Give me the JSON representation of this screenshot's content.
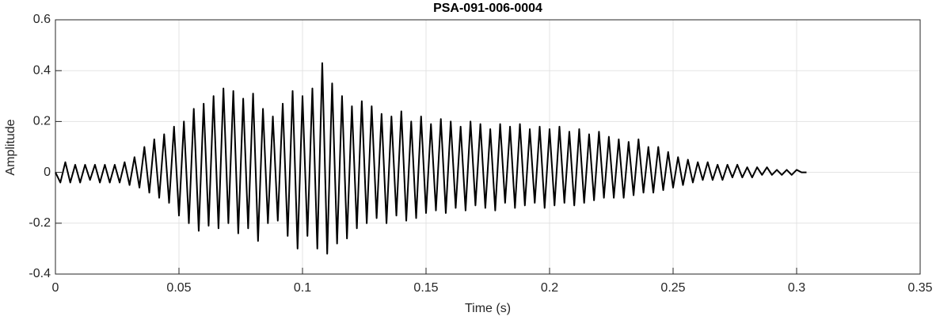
{
  "chart_data": {
    "type": "line",
    "title": "PSA-091-006-0004",
    "xlabel": "Time (s)",
    "ylabel": "Amplitude",
    "x": [
      0,
      0.002,
      0.004,
      0.006,
      0.008,
      0.01,
      0.012,
      0.014,
      0.016,
      0.018,
      0.02,
      0.022,
      0.024,
      0.026,
      0.028,
      0.03,
      0.032,
      0.034,
      0.036,
      0.038,
      0.04,
      0.042,
      0.044,
      0.046,
      0.048,
      0.05,
      0.052,
      0.054,
      0.056,
      0.058,
      0.06,
      0.062,
      0.064,
      0.066,
      0.068,
      0.07,
      0.072,
      0.074,
      0.076,
      0.078,
      0.08,
      0.082,
      0.084,
      0.086,
      0.088,
      0.09,
      0.092,
      0.094,
      0.096,
      0.098,
      0.1,
      0.102,
      0.104,
      0.106,
      0.108,
      0.11,
      0.112,
      0.114,
      0.116,
      0.118,
      0.12,
      0.122,
      0.124,
      0.126,
      0.128,
      0.13,
      0.132,
      0.134,
      0.136,
      0.138,
      0.14,
      0.142,
      0.144,
      0.146,
      0.148,
      0.15,
      0.152,
      0.154,
      0.156,
      0.158,
      0.16,
      0.162,
      0.164,
      0.166,
      0.168,
      0.17,
      0.172,
      0.174,
      0.176,
      0.178,
      0.18,
      0.182,
      0.184,
      0.186,
      0.188,
      0.19,
      0.192,
      0.194,
      0.196,
      0.198,
      0.2,
      0.202,
      0.204,
      0.206,
      0.208,
      0.21,
      0.212,
      0.214,
      0.216,
      0.218,
      0.22,
      0.222,
      0.224,
      0.226,
      0.228,
      0.23,
      0.232,
      0.234,
      0.236,
      0.238,
      0.24,
      0.242,
      0.244,
      0.246,
      0.248,
      0.25,
      0.252,
      0.254,
      0.256,
      0.258,
      0.26,
      0.262,
      0.264,
      0.266,
      0.268,
      0.27,
      0.272,
      0.274,
      0.276,
      0.278,
      0.28,
      0.282,
      0.284,
      0.286,
      0.288,
      0.29,
      0.292,
      0.294,
      0.296,
      0.298,
      0.3,
      0.302,
      0.304
    ],
    "values": [
      0,
      -0.04,
      0.04,
      -0.04,
      0.03,
      -0.04,
      0.03,
      -0.03,
      0.03,
      -0.04,
      0.03,
      -0.04,
      0.03,
      -0.04,
      0.04,
      -0.05,
      0.06,
      -0.06,
      0.1,
      -0.08,
      0.13,
      -0.1,
      0.15,
      -0.12,
      0.18,
      -0.17,
      0.2,
      -0.2,
      0.25,
      -0.23,
      0.27,
      -0.21,
      0.3,
      -0.22,
      0.33,
      -0.2,
      0.32,
      -0.24,
      0.29,
      -0.22,
      0.31,
      -0.27,
      0.25,
      -0.2,
      0.22,
      -0.19,
      0.27,
      -0.25,
      0.32,
      -0.3,
      0.3,
      -0.25,
      0.33,
      -0.3,
      0.43,
      -0.32,
      0.35,
      -0.28,
      0.3,
      -0.26,
      0.26,
      -0.22,
      0.28,
      -0.2,
      0.26,
      -0.18,
      0.23,
      -0.2,
      0.22,
      -0.17,
      0.24,
      -0.19,
      0.2,
      -0.18,
      0.22,
      -0.16,
      0.19,
      -0.15,
      0.21,
      -0.16,
      0.2,
      -0.14,
      0.18,
      -0.15,
      0.2,
      -0.13,
      0.19,
      -0.14,
      0.17,
      -0.15,
      0.19,
      -0.12,
      0.18,
      -0.14,
      0.19,
      -0.13,
      0.17,
      -0.12,
      0.18,
      -0.14,
      0.17,
      -0.13,
      0.18,
      -0.12,
      0.16,
      -0.13,
      0.17,
      -0.12,
      0.15,
      -0.11,
      0.16,
      -0.1,
      0.14,
      -0.1,
      0.13,
      -0.1,
      0.12,
      -0.09,
      0.13,
      -0.08,
      0.1,
      -0.08,
      0.1,
      -0.07,
      0.08,
      -0.06,
      0.06,
      -0.05,
      0.05,
      -0.04,
      0.04,
      -0.03,
      0.04,
      -0.03,
      0.03,
      -0.03,
      0.03,
      -0.02,
      0.03,
      -0.02,
      0.02,
      -0.02,
      0.02,
      -0.01,
      0.02,
      -0.01,
      0.01,
      -0.01,
      0.01,
      -0.01,
      0.01,
      0,
      0
    ],
    "color": "#000000",
    "xlim": [
      0,
      0.35
    ],
    "xticks": [
      0,
      0.05,
      0.1,
      0.15,
      0.2,
      0.25,
      0.3,
      0.35
    ],
    "ylim": [
      -0.4,
      0.6
    ],
    "yticks": [
      -0.4,
      -0.2,
      0,
      0.2,
      0.4,
      0.6
    ],
    "grid": true
  }
}
